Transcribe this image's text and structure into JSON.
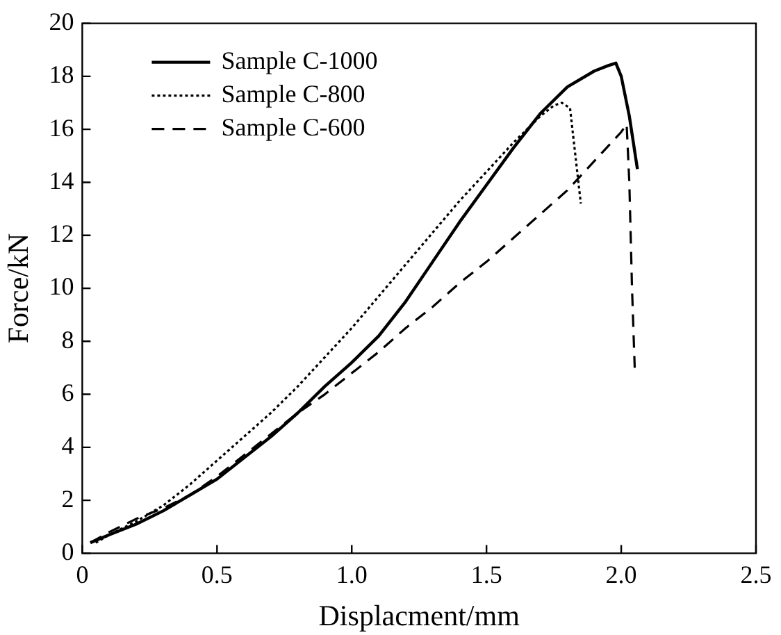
{
  "chart_data": {
    "type": "line",
    "xlabel": "Displacment/mm",
    "ylabel": "Force/kN",
    "xlim": [
      0,
      2.5
    ],
    "xticks": [
      0,
      0.5,
      {
        "value": 1,
        "label": "1.0"
      },
      1.5,
      {
        "value": 2,
        "label": "2.0"
      },
      2.5
    ],
    "ylim": [
      0,
      20
    ],
    "yticks": [
      0,
      2,
      4,
      6,
      8,
      10,
      12,
      14,
      16,
      18,
      20
    ],
    "grid": false,
    "legend": "top left",
    "marker": "none",
    "series": [
      {
        "name": "Sample C-1000",
        "color": "#000000",
        "line_style": "solid",
        "x": [
          0.03,
          0.1,
          0.2,
          0.3,
          0.4,
          0.5,
          0.6,
          0.7,
          0.8,
          0.9,
          1.0,
          1.1,
          1.2,
          1.3,
          1.4,
          1.5,
          1.6,
          1.7,
          1.8,
          1.9,
          1.95,
          1.98,
          2.0,
          2.03,
          2.06
        ],
        "values": [
          0.4,
          0.7,
          1.1,
          1.6,
          2.2,
          2.8,
          3.6,
          4.4,
          5.3,
          6.3,
          7.2,
          8.2,
          9.5,
          11,
          12.5,
          13.9,
          15.3,
          16.6,
          17.6,
          18.2,
          18.4,
          18.5,
          18,
          16.5,
          14.5
        ]
      },
      {
        "name": "Sample C-800",
        "color": "#000000",
        "line_style": "dotted",
        "x": [
          0.05,
          0.1,
          0.2,
          0.3,
          0.4,
          0.5,
          0.6,
          0.7,
          0.8,
          0.9,
          1.0,
          1.1,
          1.2,
          1.3,
          1.4,
          1.5,
          1.6,
          1.7,
          1.75,
          1.78,
          1.81,
          1.83,
          1.85
        ],
        "values": [
          0.4,
          0.7,
          1.2,
          1.8,
          2.6,
          3.5,
          4.4,
          5.3,
          6.3,
          7.4,
          8.5,
          9.7,
          10.9,
          12.1,
          13.3,
          14.4,
          15.5,
          16.5,
          16.9,
          17,
          16.8,
          15,
          13.2
        ]
      },
      {
        "name": "Sample C-600",
        "color": "#000000",
        "line_style": "dashed",
        "x": [
          0.03,
          0.1,
          0.2,
          0.3,
          0.4,
          0.5,
          0.6,
          0.7,
          0.8,
          0.9,
          1.0,
          1.1,
          1.2,
          1.3,
          1.4,
          1.5,
          1.6,
          1.7,
          1.8,
          1.9,
          2.0,
          2.02,
          2.03,
          2.04,
          2.05
        ],
        "values": [
          0.4,
          0.8,
          1.3,
          1.7,
          2.2,
          2.9,
          3.7,
          4.5,
          5.3,
          6.0,
          6.8,
          7.6,
          8.5,
          9.3,
          10.2,
          11,
          11.9,
          12.8,
          13.7,
          14.8,
          15.9,
          16.2,
          14,
          10,
          7
        ]
      }
    ]
  }
}
